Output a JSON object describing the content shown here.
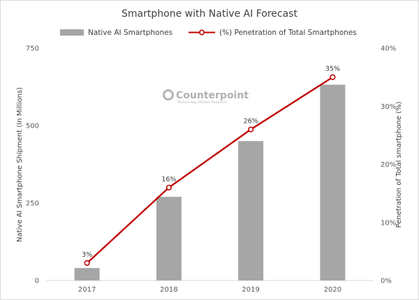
{
  "chart_data": {
    "type": "bar",
    "title": "Smartphone with Native AI Forecast",
    "categories": [
      "2017",
      "2018",
      "2019",
      "2020"
    ],
    "series": [
      {
        "name": "Native AI Smartphones",
        "type": "bar",
        "axis": "left",
        "values": [
          40,
          270,
          450,
          632
        ],
        "color": "#a6a6a6"
      },
      {
        "name": "(%) Penetration of Total Smartphones",
        "type": "line",
        "axis": "right",
        "values": [
          3,
          16,
          26,
          35
        ],
        "value_labels": [
          "3%",
          "16%",
          "26%",
          "35%"
        ],
        "color": "#c00000"
      }
    ],
    "ylabel": "Native AI Smartphone Shipment (In Millions)",
    "ylim": [
      0,
      750
    ],
    "yticks": [
      0,
      250,
      500,
      750
    ],
    "ylabel_right": "Penetration of Total smartphone (%)",
    "ylim_right": [
      0,
      40
    ],
    "yticks_right": [
      "0%",
      "10%",
      "20%",
      "30%",
      "40%"
    ],
    "grid": false,
    "legend": "top-center"
  },
  "watermark": {
    "brand": "Counterpoint",
    "tagline": "Technology Market Research"
  }
}
